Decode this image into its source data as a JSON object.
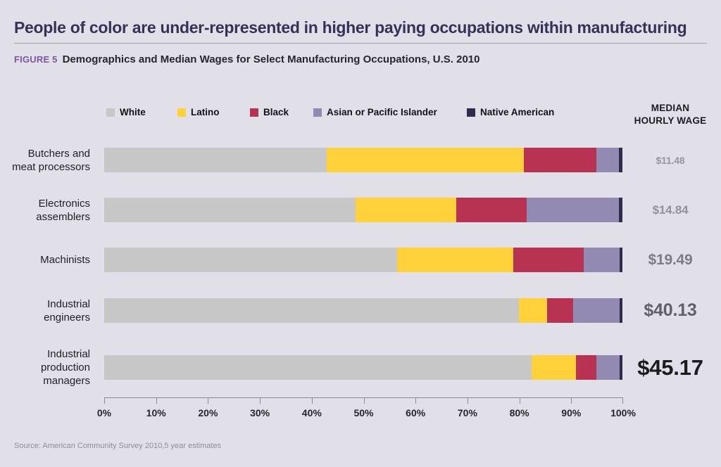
{
  "page": {
    "title": "People of color are under-represented in higher paying occupations within manufacturing",
    "figure_label": "FIGURE 5",
    "figure_caption": "Demographics and Median Wages for Select Manufacturing Occupations, U.S. 2010",
    "wage_header": "MEDIAN\nHOURLY WAGE",
    "source": "Source: American Community Survey 2010,5 year estimates"
  },
  "colors": {
    "background": "#e1e0e8",
    "title": "#363157",
    "figure_label": "#7d57a5",
    "axis": "#8b8b92"
  },
  "chart_data": {
    "type": "bar",
    "orientation": "horizontal",
    "stacked": true,
    "title": "Demographics and Median Wages for Select Manufacturing Occupations, U.S. 2010",
    "categories": [
      "Butchers and\nmeat processors",
      "Electronics\nassemblers",
      "Machinists",
      "Industrial\nengineers",
      "Industrial\nproduction\nmanagers"
    ],
    "series": [
      {
        "name": "White",
        "color": "#c7c7c8",
        "values": [
          43.0,
          48.5,
          56.5,
          80.0,
          82.5
        ]
      },
      {
        "name": "Latino",
        "color": "#ffd23b",
        "values": [
          38.0,
          19.5,
          22.5,
          5.5,
          8.5
        ]
      },
      {
        "name": "Black",
        "color": "#b73351",
        "values": [
          14.0,
          13.5,
          13.5,
          5.0,
          4.0
        ]
      },
      {
        "name": "Asian or Pacific Islander",
        "color": "#938ab3",
        "values": [
          4.3,
          17.8,
          7.0,
          9.0,
          4.5
        ]
      },
      {
        "name": "Native American",
        "color": "#2f2d4a",
        "values": [
          0.7,
          0.7,
          0.5,
          0.5,
          0.5
        ]
      }
    ],
    "median_wage_label": "MEDIAN HOURLY WAGE",
    "median_wages": [
      "$11.48",
      "$14.84",
      "$19.49",
      "$40.13",
      "$45.17"
    ],
    "x_ticks": [
      "0%",
      "10%",
      "20%",
      "30%",
      "40%",
      "50%",
      "60%",
      "70%",
      "80%",
      "90%",
      "100%"
    ],
    "xlim": [
      0,
      100
    ],
    "unit": "percent",
    "legend_position": "top",
    "grid": false
  }
}
